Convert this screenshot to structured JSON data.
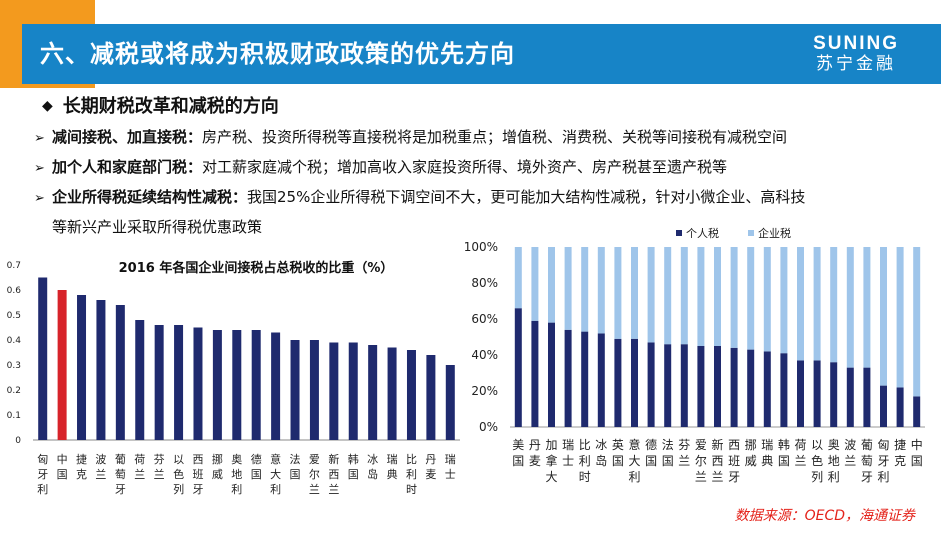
{
  "header": {
    "title": "六、减税或将成为积极财政政策的优先方向",
    "logo_en": "SUNING",
    "logo_cn": "苏宁金融"
  },
  "section": {
    "heading": "长期财税改革和减税的方向",
    "bullets": [
      {
        "bold": "减间接税、加直接税：",
        "text": "房产税、投资所得税等直接税将是加税重点；增值税、消费税、关税等间接税有减税空间"
      },
      {
        "bold": "加个人和家庭部门税：",
        "text": "对工薪家庭减个税；增加高收入家庭投资所得、境外资产、房产税甚至遗产税等"
      },
      {
        "bold": "企业所得税延续结构性减税：",
        "text": "我国25%企业所得税下调空间不大，更可能加大结构性减税，针对小微企业、高科技",
        "cont": "等新兴产业采取所得税优惠政策"
      }
    ]
  },
  "source": "数据来源：OECD，海通证券",
  "colors": {
    "navy": "#1f2a6e",
    "red": "#d7232a",
    "light_blue": "#9fc5ea",
    "title_blue": "#1784c7",
    "orange": "#f39a1e"
  },
  "chart_data": [
    {
      "type": "bar",
      "title": "2016 年各国企业间接税占总税收的比重（%）",
      "categories": [
        "匈牙利",
        "中国",
        "捷克",
        "波兰",
        "葡萄牙",
        "荷兰",
        "芬兰",
        "以色列",
        "西班牙",
        "挪威",
        "奥地利",
        "德国",
        "意大利",
        "法国",
        "爱尔兰",
        "新西兰",
        "韩国",
        "冰岛",
        "瑞典",
        "比利时",
        "丹麦",
        "瑞士"
      ],
      "values": [
        0.65,
        0.6,
        0.58,
        0.56,
        0.54,
        0.48,
        0.46,
        0.46,
        0.45,
        0.44,
        0.44,
        0.44,
        0.43,
        0.4,
        0.4,
        0.39,
        0.39,
        0.38,
        0.37,
        0.36,
        0.34,
        0.3
      ],
      "highlight_index": 1,
      "ylim": [
        0,
        0.7
      ],
      "yticks": [
        "0",
        "0.1",
        "0.2",
        "0.3",
        "0.4",
        "0.5",
        "0.6",
        "0.7"
      ]
    },
    {
      "type": "bar",
      "stacked": true,
      "categories": [
        "美国",
        "丹麦",
        "加拿大",
        "瑞士",
        "比利时",
        "冰岛",
        "英国",
        "意大利",
        "德国",
        "法国",
        "芬兰",
        "爱尔兰",
        "新西兰",
        "西班牙",
        "挪威",
        "瑞典",
        "韩国",
        "荷兰",
        "以色列",
        "奥地利",
        "波兰",
        "葡萄牙",
        "匈牙利",
        "捷克",
        "中国"
      ],
      "series": [
        {
          "name": "个人税",
          "values": [
            66,
            59,
            58,
            54,
            53,
            52,
            49,
            49,
            47,
            46,
            46,
            45,
            45,
            44,
            43,
            42,
            41,
            37,
            37,
            36,
            33,
            33,
            23,
            22,
            17
          ]
        },
        {
          "name": "企业税",
          "values": [
            34,
            41,
            42,
            46,
            47,
            48,
            51,
            51,
            53,
            54,
            54,
            55,
            55,
            56,
            57,
            58,
            59,
            63,
            63,
            64,
            67,
            67,
            77,
            78,
            83
          ]
        }
      ],
      "ylim": [
        0,
        100
      ],
      "yticks": [
        "0%",
        "20%",
        "40%",
        "60%",
        "80%",
        "100%"
      ],
      "legend": "top"
    }
  ]
}
